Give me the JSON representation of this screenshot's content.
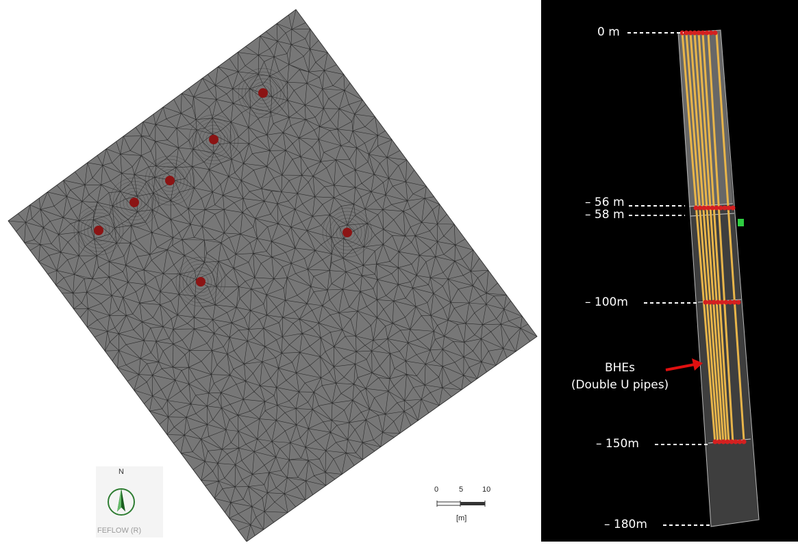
{
  "mesh_view": {
    "compass_label": "N",
    "software_label": "FEFLOW (R)",
    "scale_ticks": [
      "0",
      "5",
      "10"
    ],
    "scale_unit": "[m]",
    "mesh_fill_color": "#777777",
    "mesh_line_color": "#2a2a2a",
    "bhe_marker_color": "#8b1414",
    "bhe_count": 7
  },
  "column_view": {
    "depth_labels": [
      "0 m",
      "– 56 m",
      "– 58 m",
      "– 100m",
      "– 150m",
      "– 180m"
    ],
    "annotation_line1": "BHEs",
    "annotation_line2": "(Double U pipes)",
    "pipe_color": "#e8b54a",
    "arrow_color": "#e01010",
    "background_color": "#000000"
  }
}
